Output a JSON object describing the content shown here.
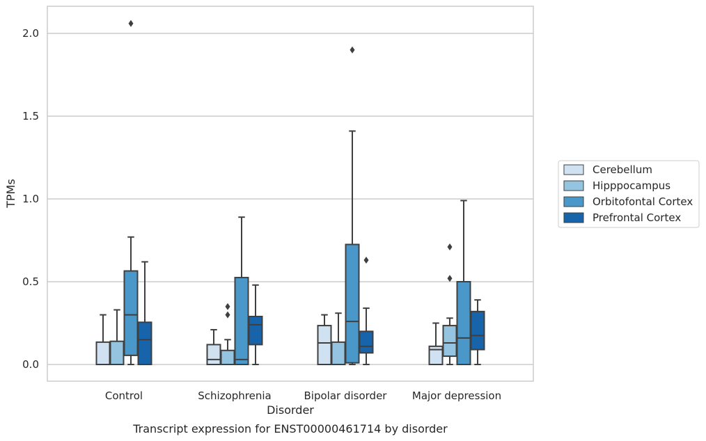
{
  "chart_data": {
    "type": "box",
    "title": "",
    "xlabel": "Disorder",
    "ylabel": "TPMs",
    "caption": "Transcript expression for ENST00000461714 by disorder",
    "categories": [
      "Control",
      "Schizophrenia",
      "Bipolar disorder",
      "Major depression"
    ],
    "ylim": [
      -0.1,
      2.17
    ],
    "yticks": [
      0.0,
      0.5,
      1.0,
      1.5,
      2.0
    ],
    "ytick_labels": [
      "0.0",
      "0.5",
      "1.0",
      "1.5",
      "2.0"
    ],
    "grid": "horizontal",
    "legend_placement": "right, outside",
    "series": [
      {
        "name": "Cerebellum",
        "color": "#d0e1f2",
        "boxes": [
          {
            "whislo": 0,
            "q1": 0,
            "med": 0,
            "q3": 0.135,
            "whishi": 0.3,
            "fliers": []
          },
          {
            "whislo": 0,
            "q1": 0,
            "med": 0.03,
            "q3": 0.12,
            "whishi": 0.21,
            "fliers": []
          },
          {
            "whislo": 0,
            "q1": 0,
            "med": 0.13,
            "q3": 0.235,
            "whishi": 0.3,
            "fliers": []
          },
          {
            "whislo": 0,
            "q1": 0,
            "med": 0.09,
            "q3": 0.11,
            "whishi": 0.25,
            "fliers": []
          }
        ]
      },
      {
        "name": "Hipppocampus",
        "color": "#94c4df",
        "boxes": [
          {
            "whislo": 0,
            "q1": 0,
            "med": 0,
            "q3": 0.14,
            "whishi": 0.33,
            "fliers": []
          },
          {
            "whislo": 0,
            "q1": 0,
            "med": 0,
            "q3": 0.085,
            "whishi": 0.15,
            "fliers": [
              0.3,
              0.35
            ]
          },
          {
            "whislo": 0,
            "q1": 0,
            "med": 0,
            "q3": 0.135,
            "whishi": 0.31,
            "fliers": []
          },
          {
            "whislo": 0,
            "q1": 0.05,
            "med": 0.13,
            "q3": 0.235,
            "whishi": 0.28,
            "fliers": [
              0.52,
              0.71
            ]
          }
        ]
      },
      {
        "name": "Orbitofontal Cortex",
        "color": "#4a98c9",
        "boxes": [
          {
            "whislo": 0,
            "q1": 0.055,
            "med": 0.3,
            "q3": 0.565,
            "whishi": 0.77,
            "fliers": [
              2.06
            ]
          },
          {
            "whislo": 0,
            "q1": 0,
            "med": 0.03,
            "q3": 0.525,
            "whishi": 0.89,
            "fliers": []
          },
          {
            "whislo": 0,
            "q1": 0.01,
            "med": 0.26,
            "q3": 0.725,
            "whishi": 1.41,
            "fliers": [
              1.9
            ]
          },
          {
            "whislo": 0,
            "q1": 0,
            "med": 0.16,
            "q3": 0.5,
            "whishi": 0.99,
            "fliers": []
          }
        ]
      },
      {
        "name": "Prefrontal Cortex",
        "color": "#1764ab",
        "boxes": [
          {
            "whislo": 0,
            "q1": 0,
            "med": 0.15,
            "q3": 0.255,
            "whishi": 0.62,
            "fliers": []
          },
          {
            "whislo": 0,
            "q1": 0.12,
            "med": 0.24,
            "q3": 0.29,
            "whishi": 0.48,
            "fliers": []
          },
          {
            "whislo": 0,
            "q1": 0.07,
            "med": 0.11,
            "q3": 0.2,
            "whishi": 0.34,
            "fliers": [
              0.63
            ]
          },
          {
            "whislo": 0,
            "q1": 0.09,
            "med": 0.175,
            "q3": 0.32,
            "whishi": 0.39,
            "fliers": []
          }
        ]
      }
    ],
    "style": {
      "background": "#ffffff",
      "grid_color": "#cccccc",
      "spine_color": "#cccccc",
      "box_edge_color": "#3f3f3f",
      "text_color": "#262626"
    }
  }
}
